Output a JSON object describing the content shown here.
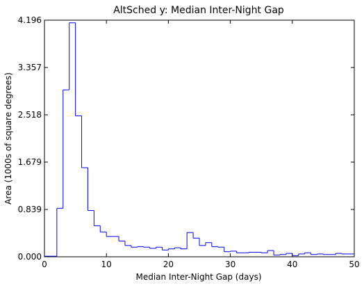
{
  "chart_data": {
    "type": "bar",
    "style": "step-histogram",
    "title": "AltSched  y: Median Inter-Night Gap",
    "xlabel": "Median Inter-Night Gap (days)",
    "ylabel": "Area (1000s of square degrees)",
    "xlim": [
      0,
      50
    ],
    "ylim": [
      0,
      4.196
    ],
    "xticks": [
      "0",
      "10",
      "20",
      "30",
      "40",
      "50"
    ],
    "yticks": [
      "0.000",
      "0.839",
      "1.679",
      "2.518",
      "3.357",
      "4.196"
    ],
    "grid": false,
    "bin_width": 1,
    "bin_starts": [
      0,
      1,
      2,
      3,
      4,
      5,
      6,
      7,
      8,
      9,
      10,
      11,
      12,
      13,
      14,
      15,
      16,
      17,
      18,
      19,
      20,
      21,
      22,
      23,
      24,
      25,
      26,
      27,
      28,
      29,
      30,
      31,
      32,
      33,
      34,
      35,
      36,
      37,
      38,
      39,
      40,
      41,
      42,
      43,
      44,
      45,
      46,
      47,
      48,
      49
    ],
    "values": [
      0.01,
      0.01,
      0.86,
      2.96,
      4.15,
      2.5,
      1.58,
      0.82,
      0.55,
      0.44,
      0.36,
      0.36,
      0.28,
      0.2,
      0.17,
      0.18,
      0.17,
      0.15,
      0.17,
      0.12,
      0.14,
      0.16,
      0.14,
      0.43,
      0.33,
      0.2,
      0.25,
      0.18,
      0.17,
      0.09,
      0.1,
      0.07,
      0.07,
      0.08,
      0.08,
      0.07,
      0.11,
      0.03,
      0.04,
      0.06,
      0.02,
      0.05,
      0.07,
      0.04,
      0.05,
      0.04,
      0.04,
      0.06,
      0.05,
      0.05
    ],
    "series_color": "#0000ff"
  }
}
